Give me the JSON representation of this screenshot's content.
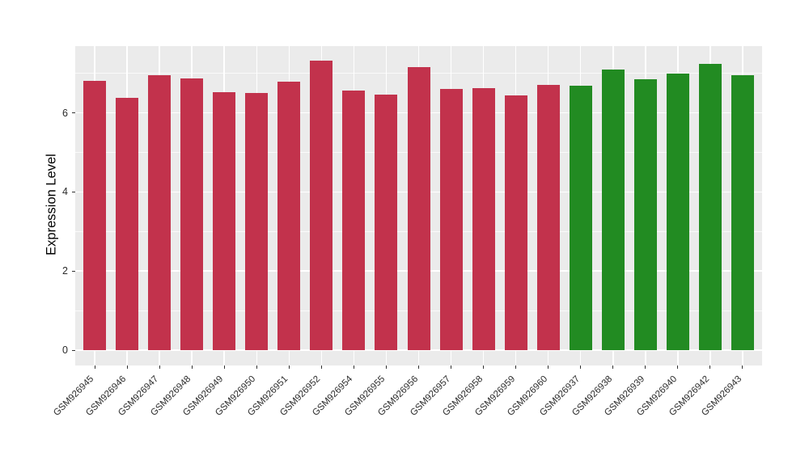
{
  "figure": {
    "background_color": "#FFFFFF",
    "panel_color": "#EBEBEB",
    "gridline_color": "#FFFFFF",
    "tick_color": "#333333",
    "axis_text_color": "#2B2B2B"
  },
  "chart_data": {
    "type": "bar",
    "title": "",
    "xlabel": "",
    "ylabel": "Expression Level",
    "categories": [
      "GSM926945",
      "GSM926946",
      "GSM926947",
      "GSM926948",
      "GSM926949",
      "GSM926950",
      "GSM926951",
      "GSM926952",
      "GSM926954",
      "GSM926955",
      "GSM926956",
      "GSM926957",
      "GSM926958",
      "GSM926959",
      "GSM926960",
      "GSM926937",
      "GSM926938",
      "GSM926939",
      "GSM926940",
      "GSM926942",
      "GSM926943"
    ],
    "values": [
      6.82,
      6.39,
      6.95,
      6.87,
      6.53,
      6.5,
      6.79,
      7.33,
      6.56,
      6.46,
      7.15,
      6.6,
      6.63,
      6.44,
      6.71,
      6.69,
      7.1,
      6.86,
      6.99,
      7.23,
      6.96
    ],
    "groups": [
      "group1",
      "group1",
      "group1",
      "group1",
      "group1",
      "group1",
      "group1",
      "group1",
      "group1",
      "group1",
      "group1",
      "group1",
      "group1",
      "group1",
      "group1",
      "group2",
      "group2",
      "group2",
      "group2",
      "group2",
      "group2"
    ],
    "group_colors": {
      "group1": "#C2324C",
      "group2": "#228B22"
    },
    "ylim": [
      0,
      7.68
    ],
    "yticks": [
      0,
      2,
      4,
      6
    ],
    "yticks_minor": [
      1,
      3,
      5,
      7
    ],
    "grid": true,
    "legend": "none",
    "bar_width_fraction": 0.7,
    "x_label_angle_deg": 45
  }
}
